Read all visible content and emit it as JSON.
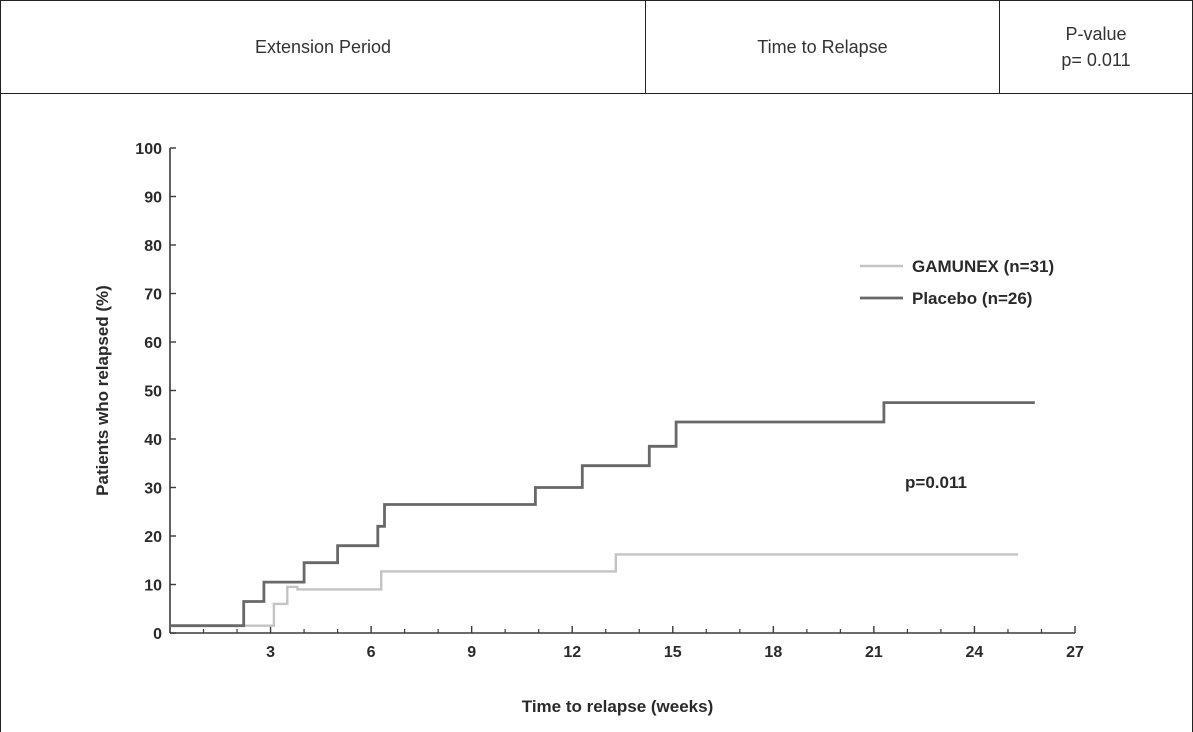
{
  "header": {
    "col1": "Extension Period",
    "col2": "Time to Relapse",
    "col3_line1": "P-value",
    "col3_line2": "p= 0.011"
  },
  "chart_data": {
    "type": "line",
    "subtype": "kaplan-meier-step",
    "xlabel": "Time to relapse (weeks)",
    "ylabel": "Patients who relapsed (%)",
    "xlim": [
      0,
      27
    ],
    "ylim": [
      0,
      100
    ],
    "xticks": [
      3,
      6,
      9,
      12,
      15,
      18,
      21,
      24,
      27
    ],
    "xminor_step": 1,
    "yticks": [
      0,
      10,
      20,
      30,
      40,
      50,
      60,
      70,
      80,
      90,
      100
    ],
    "grid": false,
    "legend": "right",
    "annotation": "p=0.011",
    "series": [
      {
        "name": "GAMUNEX (n=31)",
        "color": "#c4c4c4",
        "x": [
          0,
          3.1,
          3.1,
          3.5,
          3.5,
          3.8,
          3.8,
          6.3,
          6.3,
          13.3,
          13.3,
          25.3
        ],
        "y": [
          1.5,
          1.5,
          6,
          6,
          9.5,
          9.5,
          9,
          9,
          12.7,
          12.7,
          16.2,
          16.2
        ]
      },
      {
        "name": "Placebo (n=26)",
        "color": "#686868",
        "x": [
          0,
          2.2,
          2.2,
          2.8,
          2.8,
          4.0,
          4.0,
          5.0,
          5.0,
          6.2,
          6.2,
          6.4,
          6.4,
          10.9,
          10.9,
          12.3,
          12.3,
          14.3,
          14.3,
          15.1,
          15.1,
          21.3,
          21.3,
          25.8
        ],
        "y": [
          1.5,
          1.5,
          6.5,
          6.5,
          10.5,
          10.5,
          14.5,
          14.5,
          18,
          18,
          22,
          22,
          26.5,
          26.5,
          30,
          30,
          34.5,
          34.5,
          38.5,
          38.5,
          43.5,
          43.5,
          47.5,
          47.5
        ]
      }
    ]
  }
}
